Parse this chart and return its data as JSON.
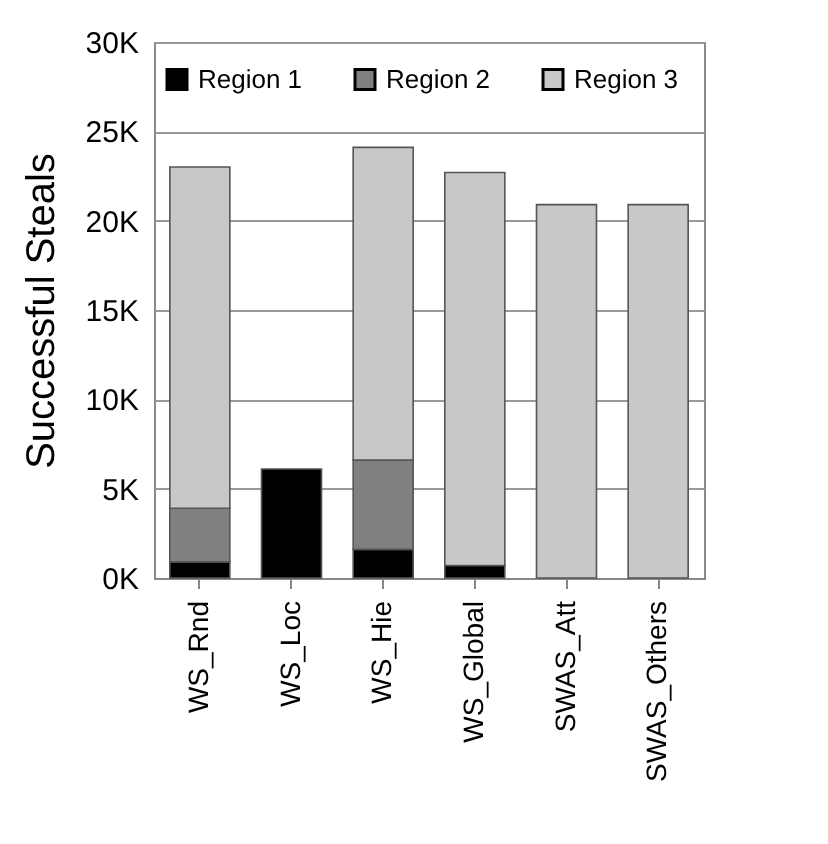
{
  "chart_data": {
    "type": "bar",
    "stacked": true,
    "ylabel": "Successful Steals",
    "categories": [
      "WS_Rnd",
      "WS_Loc",
      "WS_Hie",
      "WS_Global",
      "SWAS_Att",
      "SWAS_Others"
    ],
    "series": [
      {
        "name": "Region 1",
        "color": "#000000",
        "values": [
          900,
          6100,
          1600,
          700,
          0,
          0
        ]
      },
      {
        "name": "Region 2",
        "color": "#808080",
        "values": [
          3000,
          0,
          5000,
          0,
          0,
          0
        ]
      },
      {
        "name": "Region 3",
        "color": "#c8c8c8",
        "values": [
          19100,
          0,
          17500,
          22000,
          20900,
          20900
        ]
      }
    ],
    "ylim": [
      0,
      30000
    ],
    "yticks": [
      {
        "value": 0,
        "label": "0K"
      },
      {
        "value": 5000,
        "label": "5K"
      },
      {
        "value": 10000,
        "label": "10K"
      },
      {
        "value": 15000,
        "label": "15K"
      },
      {
        "value": 20000,
        "label": "20K"
      },
      {
        "value": 25000,
        "label": "25K"
      },
      {
        "value": 30000,
        "label": "30K"
      }
    ],
    "grid": "y",
    "legend": "top"
  }
}
